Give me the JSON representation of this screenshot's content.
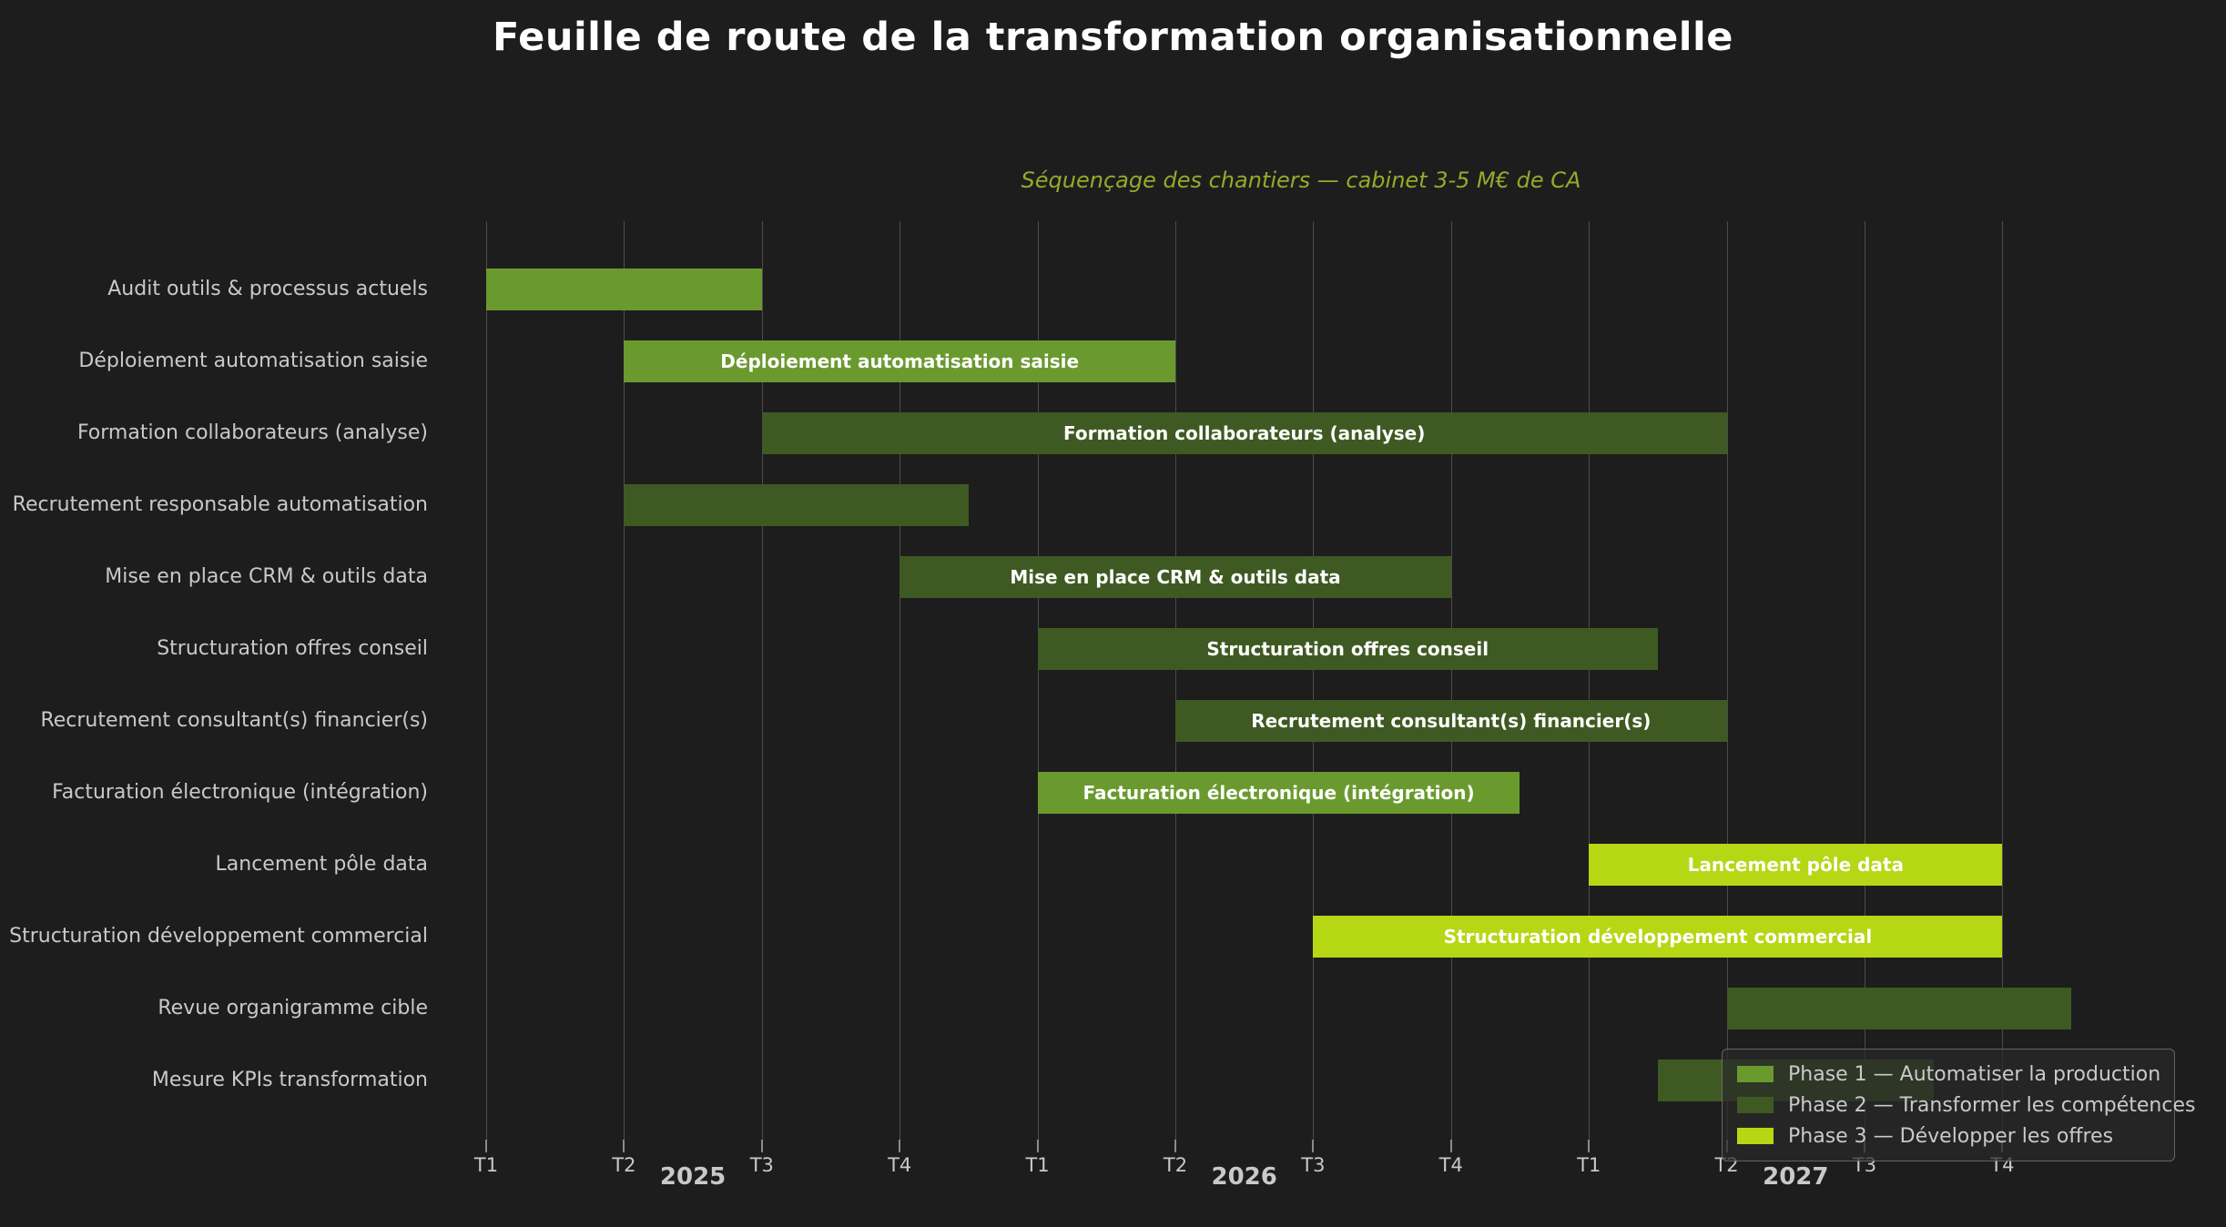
{
  "title": "Feuille de route de la transformation organisationnelle",
  "subtitle": "Séquençage des chantiers — cabinet 3-5 M€ de CA",
  "colors": {
    "background": "#1d1d1d",
    "phase1": "#6a9a2e",
    "phase2": "#3e5a22",
    "phase3": "#b6d714",
    "grid": "#4c4c4c",
    "tick_text": "#c9c9c9",
    "subtitle_text": "#97a92b",
    "title_text": "#ffffff",
    "bar_label_text": "#ffffff"
  },
  "x_axis": {
    "tick_labels": [
      "T1",
      "T2",
      "T3",
      "T4",
      "T1",
      "T2",
      "T3",
      "T4",
      "T1",
      "T2",
      "T3",
      "T4"
    ],
    "years": [
      {
        "label": "2025",
        "pos": 1.5
      },
      {
        "label": "2026",
        "pos": 5.5
      },
      {
        "label": "2027",
        "pos": 9.5
      }
    ]
  },
  "legend": {
    "items": [
      {
        "label": "Phase 1 — Automatiser la production",
        "phase": "phase1"
      },
      {
        "label": "Phase 2 — Transformer les compétences",
        "phase": "phase2"
      },
      {
        "label": "Phase 3 — Développer les offres",
        "phase": "phase3"
      }
    ]
  },
  "chart_data": {
    "type": "bar",
    "variant": "gantt",
    "unit": "quarters elapsed since 2025-T1 (1 unit = 1 trimestre)",
    "x_range": [
      0,
      12
    ],
    "grid": "vertical-only",
    "legend_position": "bottom-right",
    "tasks": [
      {
        "name": "Audit outils & processus actuels",
        "start": 0,
        "end": 2,
        "phase": "phase1",
        "label_inside": false
      },
      {
        "name": "Déploiement automatisation saisie",
        "start": 1,
        "end": 5,
        "phase": "phase1",
        "label_inside": true
      },
      {
        "name": "Formation collaborateurs (analyse)",
        "start": 2,
        "end": 9,
        "phase": "phase2",
        "label_inside": true
      },
      {
        "name": "Recrutement responsable automatisation",
        "start": 1,
        "end": 3.5,
        "phase": "phase2",
        "label_inside": false
      },
      {
        "name": "Mise en place CRM & outils data",
        "start": 3,
        "end": 7,
        "phase": "phase2",
        "label_inside": true
      },
      {
        "name": "Structuration offres conseil",
        "start": 4,
        "end": 8.5,
        "phase": "phase2",
        "label_inside": true
      },
      {
        "name": "Recrutement consultant(s) financier(s)",
        "start": 5,
        "end": 9,
        "phase": "phase2",
        "label_inside": true
      },
      {
        "name": "Facturation électronique (intégration)",
        "start": 4,
        "end": 7.5,
        "phase": "phase1",
        "label_inside": true
      },
      {
        "name": "Lancement pôle data",
        "start": 8,
        "end": 11,
        "phase": "phase3",
        "label_inside": true
      },
      {
        "name": "Structuration développement commercial",
        "start": 6,
        "end": 11,
        "phase": "phase3",
        "label_inside": true
      },
      {
        "name": "Revue organigramme cible",
        "start": 9,
        "end": 11.5,
        "phase": "phase2",
        "label_inside": false
      },
      {
        "name": "Mesure KPIs transformation",
        "start": 8.5,
        "end": 10.5,
        "phase": "phase2",
        "label_inside": false
      }
    ]
  }
}
